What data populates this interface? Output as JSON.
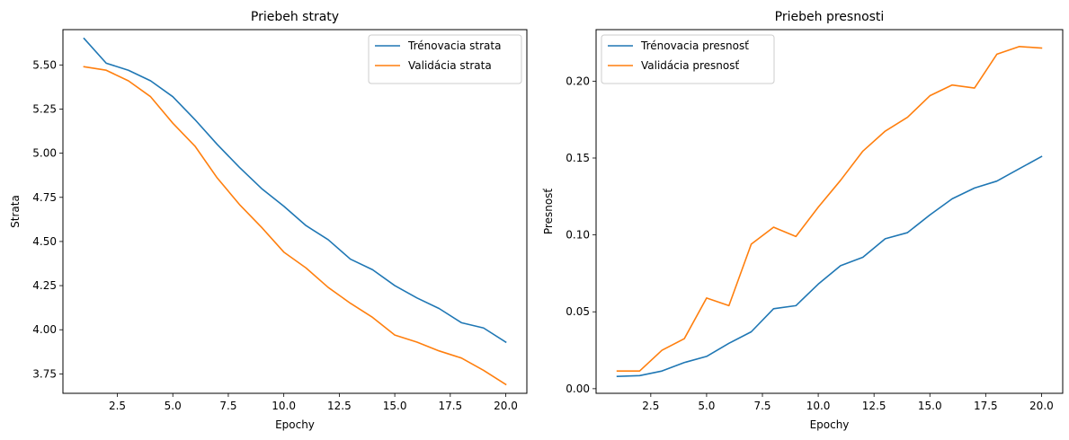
{
  "colors": {
    "train": "#1f77b4",
    "val": "#ff7f0e"
  },
  "chart_data": [
    {
      "type": "line",
      "title": "Priebeh straty",
      "xlabel": "Epochy",
      "ylabel": "Strata",
      "xlim": [
        0.05,
        20.95
      ],
      "ylim": [
        3.64,
        5.7
      ],
      "xticks": [
        2.5,
        5.0,
        7.5,
        10.0,
        12.5,
        15.0,
        17.5,
        20.0
      ],
      "yticks": [
        3.75,
        4.0,
        4.25,
        4.5,
        4.75,
        5.0,
        5.25,
        5.5
      ],
      "xtick_labels": [
        "2.5",
        "5.0",
        "7.5",
        "10.0",
        "12.5",
        "15.0",
        "17.5",
        "20.0"
      ],
      "ytick_labels": [
        "3.75",
        "4.00",
        "4.25",
        "4.50",
        "4.75",
        "5.00",
        "5.25",
        "5.50"
      ],
      "legend_position": "top-right",
      "x": [
        1,
        2,
        3,
        4,
        5,
        6,
        7,
        8,
        9,
        10,
        11,
        12,
        13,
        14,
        15,
        16,
        17,
        18,
        19,
        20
      ],
      "series": [
        {
          "name": "Trénovacia strata",
          "color": "#1f77b4",
          "values": [
            5.65,
            5.51,
            5.47,
            5.41,
            5.32,
            5.19,
            5.05,
            4.92,
            4.8,
            4.7,
            4.59,
            4.51,
            4.4,
            4.34,
            4.25,
            4.18,
            4.12,
            4.04,
            4.01,
            3.93
          ]
        },
        {
          "name": "Validácia strata",
          "color": "#ff7f0e",
          "values": [
            5.49,
            5.47,
            5.41,
            5.32,
            5.17,
            5.04,
            4.86,
            4.71,
            4.58,
            4.44,
            4.35,
            4.24,
            4.15,
            4.07,
            3.97,
            3.93,
            3.88,
            3.84,
            3.77,
            3.69
          ]
        }
      ]
    },
    {
      "type": "line",
      "title": "Priebeh presnosti",
      "xlabel": "Epochy",
      "ylabel": "Presnosť",
      "xlim": [
        0.05,
        20.95
      ],
      "ylim": [
        -0.003,
        0.2335
      ],
      "xticks": [
        2.5,
        5.0,
        7.5,
        10.0,
        12.5,
        15.0,
        17.5,
        20.0
      ],
      "yticks": [
        0.0,
        0.05,
        0.1,
        0.15,
        0.2
      ],
      "xtick_labels": [
        "2.5",
        "5.0",
        "7.5",
        "10.0",
        "12.5",
        "15.0",
        "17.5",
        "20.0"
      ],
      "ytick_labels": [
        "0.00",
        "0.05",
        "0.10",
        "0.15",
        "0.20"
      ],
      "legend_position": "top-left",
      "x": [
        1,
        2,
        3,
        4,
        5,
        6,
        7,
        8,
        9,
        10,
        11,
        12,
        13,
        14,
        15,
        16,
        17,
        18,
        19,
        20
      ],
      "series": [
        {
          "name": "Trénovacia presnosť",
          "color": "#1f77b4",
          "values": [
            0.008,
            0.0085,
            0.0115,
            0.017,
            0.021,
            0.0295,
            0.037,
            0.052,
            0.054,
            0.068,
            0.08,
            0.0855,
            0.0975,
            0.1015,
            0.113,
            0.1235,
            0.1305,
            0.135,
            0.143,
            0.151
          ]
        },
        {
          "name": "Validácia presnosť",
          "color": "#ff7f0e",
          "values": [
            0.0115,
            0.0115,
            0.025,
            0.0325,
            0.059,
            0.054,
            0.094,
            0.105,
            0.099,
            0.118,
            0.1355,
            0.1545,
            0.1675,
            0.1765,
            0.1905,
            0.1975,
            0.1955,
            0.2175,
            0.2225,
            0.2215
          ]
        }
      ]
    }
  ]
}
